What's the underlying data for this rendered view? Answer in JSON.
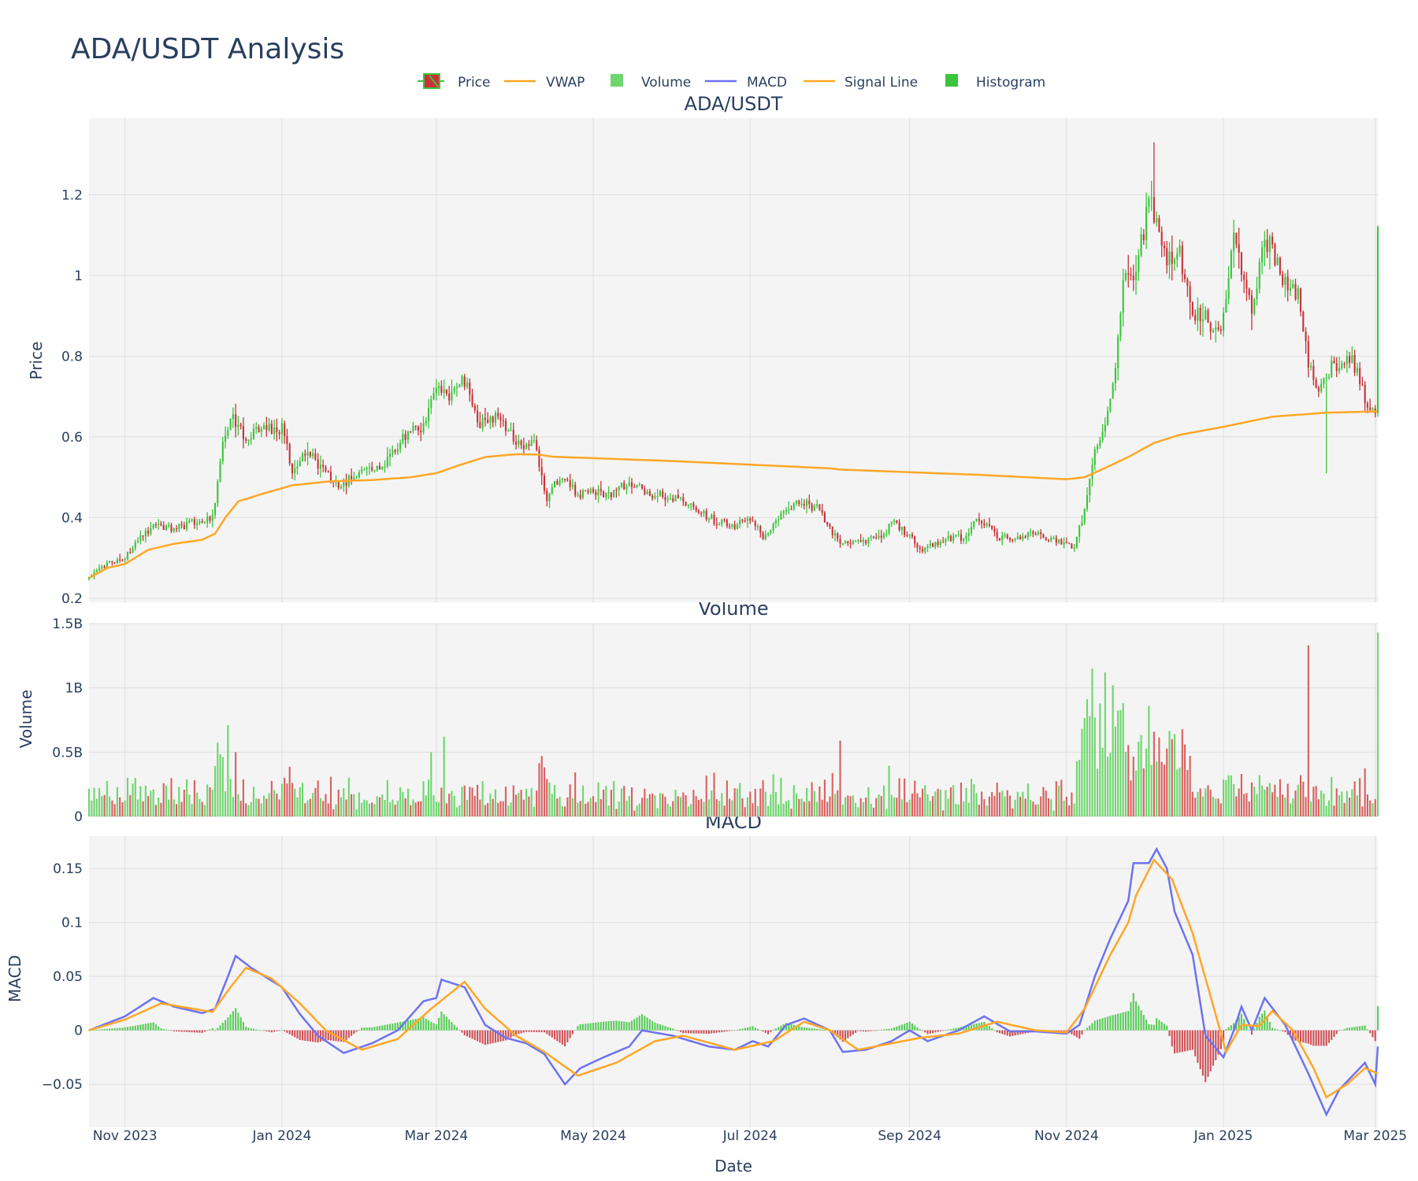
{
  "colors": {
    "up": "#3cc43c",
    "down": "#c8333a",
    "vwap": "#ffa726",
    "macd": "#6e72f0",
    "signal": "#ffa726",
    "volume_up": "#6ed66e",
    "volume_down": "#d96060",
    "plot_bg": "#f4f4f4"
  },
  "chart_data": {
    "title": "ADA/USDT Analysis",
    "legend": [
      "Price",
      "VWAP",
      "Volume",
      "MACD",
      "Signal Line",
      "Histogram"
    ],
    "xlabel": "Date",
    "x_range": [
      "2023-10-18",
      "2025-03-02"
    ],
    "x_ticks": [
      {
        "date": "2023-11-01",
        "label": "Nov 2023"
      },
      {
        "date": "2024-01-01",
        "label": "Jan 2024"
      },
      {
        "date": "2024-03-01",
        "label": "Mar 2024"
      },
      {
        "date": "2024-05-01",
        "label": "May 2024"
      },
      {
        "date": "2024-07-01",
        "label": "Jul 2024"
      },
      {
        "date": "2024-09-01",
        "label": "Sep 2024"
      },
      {
        "date": "2024-11-01",
        "label": "Nov 2024"
      },
      {
        "date": "2025-01-01",
        "label": "Jan 2025"
      },
      {
        "date": "2025-03-01",
        "label": "Mar 2025"
      }
    ],
    "price": {
      "subplot_title": "ADA/USDT",
      "type": "candlestick",
      "ylabel": "Price",
      "ylim": [
        0.19,
        1.39
      ],
      "y_ticks": [
        {
          "value": 0.2,
          "label": "0.2"
        },
        {
          "value": 0.4,
          "label": "0.4"
        },
        {
          "value": 0.6,
          "label": "0.6"
        },
        {
          "value": 0.8,
          "label": "0.8"
        },
        {
          "value": 1.0,
          "label": "1"
        },
        {
          "value": 1.2,
          "label": "1.2"
        }
      ],
      "close_keypoints": [
        [
          "2023-10-18",
          0.25
        ],
        [
          "2023-10-24",
          0.28
        ],
        [
          "2023-11-01",
          0.3
        ],
        [
          "2023-11-08",
          0.36
        ],
        [
          "2023-11-13",
          0.38
        ],
        [
          "2023-11-20",
          0.37
        ],
        [
          "2023-11-28",
          0.39
        ],
        [
          "2023-12-05",
          0.4
        ],
        [
          "2023-12-09",
          0.58
        ],
        [
          "2023-12-13",
          0.65
        ],
        [
          "2023-12-18",
          0.6
        ],
        [
          "2023-12-25",
          0.62
        ],
        [
          "2024-01-01",
          0.62
        ],
        [
          "2024-01-05",
          0.52
        ],
        [
          "2024-01-11",
          0.56
        ],
        [
          "2024-01-20",
          0.5
        ],
        [
          "2024-01-24",
          0.48
        ],
        [
          "2024-02-01",
          0.51
        ],
        [
          "2024-02-10",
          0.54
        ],
        [
          "2024-02-18",
          0.6
        ],
        [
          "2024-02-25",
          0.63
        ],
        [
          "2024-03-01",
          0.72
        ],
        [
          "2024-03-05",
          0.7
        ],
        [
          "2024-03-12",
          0.74
        ],
        [
          "2024-03-18",
          0.63
        ],
        [
          "2024-03-25",
          0.66
        ],
        [
          "2024-04-01",
          0.58
        ],
        [
          "2024-04-08",
          0.58
        ],
        [
          "2024-04-13",
          0.45
        ],
        [
          "2024-04-18",
          0.5
        ],
        [
          "2024-04-25",
          0.46
        ],
        [
          "2024-05-08",
          0.46
        ],
        [
          "2024-05-15",
          0.49
        ],
        [
          "2024-05-22",
          0.46
        ],
        [
          "2024-06-01",
          0.45
        ],
        [
          "2024-06-10",
          0.42
        ],
        [
          "2024-06-18",
          0.39
        ],
        [
          "2024-06-25",
          0.38
        ],
        [
          "2024-07-01",
          0.4
        ],
        [
          "2024-07-06",
          0.35
        ],
        [
          "2024-07-14",
          0.42
        ],
        [
          "2024-07-20",
          0.44
        ],
        [
          "2024-07-28",
          0.42
        ],
        [
          "2024-08-05",
          0.33
        ],
        [
          "2024-08-12",
          0.34
        ],
        [
          "2024-08-20",
          0.35
        ],
        [
          "2024-08-26",
          0.39
        ],
        [
          "2024-09-06",
          0.32
        ],
        [
          "2024-09-15",
          0.35
        ],
        [
          "2024-09-22",
          0.35
        ],
        [
          "2024-09-28",
          0.4
        ],
        [
          "2024-10-05",
          0.35
        ],
        [
          "2024-10-12",
          0.35
        ],
        [
          "2024-10-20",
          0.36
        ],
        [
          "2024-10-28",
          0.34
        ],
        [
          "2024-11-04",
          0.33
        ],
        [
          "2024-11-08",
          0.42
        ],
        [
          "2024-11-12",
          0.58
        ],
        [
          "2024-11-15",
          0.6
        ],
        [
          "2024-11-20",
          0.76
        ],
        [
          "2024-11-23",
          1.0
        ],
        [
          "2024-11-27",
          0.98
        ],
        [
          "2024-12-03",
          1.18
        ],
        [
          "2024-12-06",
          1.15
        ],
        [
          "2024-12-10",
          1.05
        ],
        [
          "2024-12-15",
          1.05
        ],
        [
          "2024-12-20",
          0.9
        ],
        [
          "2024-12-25",
          0.9
        ],
        [
          "2024-12-30",
          0.85
        ],
        [
          "2025-01-02",
          0.95
        ],
        [
          "2025-01-05",
          1.08
        ],
        [
          "2025-01-08",
          1.02
        ],
        [
          "2025-01-12",
          0.92
        ],
        [
          "2025-01-17",
          1.08
        ],
        [
          "2025-01-20",
          1.07
        ],
        [
          "2025-01-25",
          0.98
        ],
        [
          "2025-01-30",
          0.95
        ],
        [
          "2025-02-03",
          0.78
        ],
        [
          "2025-02-07",
          0.7
        ],
        [
          "2025-02-12",
          0.77
        ],
        [
          "2025-02-20",
          0.79
        ],
        [
          "2025-02-25",
          0.7
        ],
        [
          "2025-03-01",
          0.65
        ],
        [
          "2025-03-02",
          1.12
        ]
      ],
      "vwap_keypoints": [
        [
          "2023-10-18",
          0.25
        ],
        [
          "2023-10-25",
          0.275
        ],
        [
          "2023-11-01",
          0.285
        ],
        [
          "2023-11-10",
          0.32
        ],
        [
          "2023-11-20",
          0.335
        ],
        [
          "2023-12-01",
          0.345
        ],
        [
          "2023-12-06",
          0.36
        ],
        [
          "2023-12-10",
          0.4
        ],
        [
          "2023-12-15",
          0.44
        ],
        [
          "2023-12-25",
          0.46
        ],
        [
          "2024-01-05",
          0.48
        ],
        [
          "2024-01-20",
          0.49
        ],
        [
          "2024-02-05",
          0.493
        ],
        [
          "2024-02-20",
          0.5
        ],
        [
          "2024-03-01",
          0.51
        ],
        [
          "2024-03-10",
          0.53
        ],
        [
          "2024-03-20",
          0.55
        ],
        [
          "2024-04-01",
          0.557
        ],
        [
          "2024-04-10",
          0.556
        ],
        [
          "2024-04-15",
          0.551
        ],
        [
          "2024-06-01",
          0.54
        ],
        [
          "2024-08-01",
          0.522
        ],
        [
          "2024-08-05",
          0.519
        ],
        [
          "2024-10-01",
          0.505
        ],
        [
          "2024-11-01",
          0.495
        ],
        [
          "2024-11-08",
          0.5
        ],
        [
          "2024-11-15",
          0.52
        ],
        [
          "2024-11-25",
          0.55
        ],
        [
          "2024-12-05",
          0.585
        ],
        [
          "2024-12-15",
          0.605
        ],
        [
          "2025-01-01",
          0.625
        ],
        [
          "2025-01-20",
          0.65
        ],
        [
          "2025-02-10",
          0.66
        ],
        [
          "2025-03-02",
          0.663
        ]
      ],
      "notable_extremes": [
        {
          "date": "2024-12-05",
          "high": 1.33
        },
        {
          "date": "2025-02-10",
          "low": 0.51
        }
      ]
    },
    "volume": {
      "subplot_title": "Volume",
      "type": "bar",
      "ylabel": "Volume",
      "ylim": [
        0,
        1.5
      ],
      "unit": "B",
      "y_ticks": [
        {
          "value": 0,
          "label": "0"
        },
        {
          "value": 0.5,
          "label": "0.5B"
        },
        {
          "value": 1.0,
          "label": "1B"
        },
        {
          "value": 1.5,
          "label": "1.5B"
        }
      ],
      "spikes": [
        [
          "2023-12-11",
          0.71
        ],
        [
          "2023-12-14",
          0.5
        ],
        [
          "2024-02-28",
          0.5
        ],
        [
          "2024-03-04",
          0.62
        ],
        [
          "2024-04-11",
          0.47
        ],
        [
          "2024-08-05",
          0.59
        ],
        [
          "2024-11-11",
          1.15
        ],
        [
          "2024-11-14",
          0.88
        ],
        [
          "2024-11-16",
          1.12
        ],
        [
          "2024-11-19",
          1.02
        ],
        [
          "2024-12-03",
          0.86
        ],
        [
          "2025-02-03",
          1.33
        ],
        [
          "2025-03-02",
          1.43
        ]
      ]
    },
    "macd": {
      "subplot_title": "MACD",
      "type": "line",
      "ylabel": "MACD",
      "ylim": [
        -0.09,
        0.18
      ],
      "y_ticks": [
        {
          "value": -0.05,
          "label": "−0.05"
        },
        {
          "value": 0,
          "label": "0"
        },
        {
          "value": 0.05,
          "label": "0.05"
        },
        {
          "value": 0.1,
          "label": "0.1"
        },
        {
          "value": 0.15,
          "label": "0.15"
        }
      ],
      "macd_keypoints": [
        [
          "2023-10-18",
          0.0
        ],
        [
          "2023-11-01",
          0.013
        ],
        [
          "2023-11-12",
          0.03
        ],
        [
          "2023-11-20",
          0.022
        ],
        [
          "2023-12-01",
          0.016
        ],
        [
          "2023-12-06",
          0.02
        ],
        [
          "2023-12-11",
          0.05
        ],
        [
          "2023-12-14",
          0.069
        ],
        [
          "2023-12-20",
          0.058
        ],
        [
          "2024-01-01",
          0.04
        ],
        [
          "2024-01-08",
          0.015
        ],
        [
          "2024-01-15",
          -0.005
        ],
        [
          "2024-01-25",
          -0.021
        ],
        [
          "2024-02-05",
          -0.012
        ],
        [
          "2024-02-15",
          0.0
        ],
        [
          "2024-02-25",
          0.027
        ],
        [
          "2024-03-01",
          0.03
        ],
        [
          "2024-03-03",
          0.047
        ],
        [
          "2024-03-12",
          0.04
        ],
        [
          "2024-03-20",
          0.005
        ],
        [
          "2024-03-28",
          -0.007
        ],
        [
          "2024-04-05",
          -0.012
        ],
        [
          "2024-04-12",
          -0.022
        ],
        [
          "2024-04-20",
          -0.05
        ],
        [
          "2024-04-26",
          -0.035
        ],
        [
          "2024-05-05",
          -0.025
        ],
        [
          "2024-05-15",
          -0.015
        ],
        [
          "2024-05-20",
          0.0
        ],
        [
          "2024-06-01",
          -0.005
        ],
        [
          "2024-06-15",
          -0.015
        ],
        [
          "2024-06-25",
          -0.018
        ],
        [
          "2024-07-02",
          -0.01
        ],
        [
          "2024-07-08",
          -0.015
        ],
        [
          "2024-07-15",
          0.005
        ],
        [
          "2024-07-22",
          0.011
        ],
        [
          "2024-08-01",
          0.0
        ],
        [
          "2024-08-06",
          -0.02
        ],
        [
          "2024-08-15",
          -0.018
        ],
        [
          "2024-08-25",
          -0.01
        ],
        [
          "2024-09-01",
          0.0
        ],
        [
          "2024-09-08",
          -0.01
        ],
        [
          "2024-09-20",
          0.0
        ],
        [
          "2024-09-30",
          0.013
        ],
        [
          "2024-10-10",
          -0.001
        ],
        [
          "2024-10-20",
          -0.001
        ],
        [
          "2024-11-01",
          -0.003
        ],
        [
          "2024-11-06",
          0.005
        ],
        [
          "2024-11-12",
          0.05
        ],
        [
          "2024-11-18",
          0.085
        ],
        [
          "2024-11-25",
          0.12
        ],
        [
          "2024-11-27",
          0.155
        ],
        [
          "2024-12-03",
          0.155
        ],
        [
          "2024-12-06",
          0.168
        ],
        [
          "2024-12-10",
          0.15
        ],
        [
          "2024-12-13",
          0.11
        ],
        [
          "2024-12-20",
          0.07
        ],
        [
          "2024-12-25",
          -0.005
        ],
        [
          "2025-01-01",
          -0.025
        ],
        [
          "2025-01-05",
          0.0
        ],
        [
          "2025-01-08",
          0.022
        ],
        [
          "2025-01-12",
          0.0
        ],
        [
          "2025-01-17",
          0.03
        ],
        [
          "2025-01-25",
          0.005
        ],
        [
          "2025-02-03",
          -0.04
        ],
        [
          "2025-02-10",
          -0.078
        ],
        [
          "2025-02-15",
          -0.055
        ],
        [
          "2025-02-25",
          -0.03
        ],
        [
          "2025-03-01",
          -0.05
        ],
        [
          "2025-03-02",
          -0.015
        ]
      ],
      "signal_keypoints": [
        [
          "2023-10-18",
          0.0
        ],
        [
          "2023-11-01",
          0.01
        ],
        [
          "2023-11-15",
          0.025
        ],
        [
          "2023-12-05",
          0.017
        ],
        [
          "2023-12-12",
          0.04
        ],
        [
          "2023-12-18",
          0.058
        ],
        [
          "2023-12-28",
          0.048
        ],
        [
          "2024-01-08",
          0.025
        ],
        [
          "2024-01-18",
          0.0
        ],
        [
          "2024-02-01",
          -0.018
        ],
        [
          "2024-02-15",
          -0.008
        ],
        [
          "2024-02-28",
          0.02
        ],
        [
          "2024-03-12",
          0.045
        ],
        [
          "2024-03-20",
          0.02
        ],
        [
          "2024-04-01",
          -0.005
        ],
        [
          "2024-04-12",
          -0.02
        ],
        [
          "2024-04-25",
          -0.042
        ],
        [
          "2024-05-10",
          -0.03
        ],
        [
          "2024-05-25",
          -0.01
        ],
        [
          "2024-06-05",
          -0.005
        ],
        [
          "2024-06-25",
          -0.018
        ],
        [
          "2024-07-10",
          -0.01
        ],
        [
          "2024-07-22",
          0.008
        ],
        [
          "2024-08-01",
          0.0
        ],
        [
          "2024-08-12",
          -0.018
        ],
        [
          "2024-08-25",
          -0.012
        ],
        [
          "2024-09-05",
          -0.007
        ],
        [
          "2024-09-20",
          -0.003
        ],
        [
          "2024-10-05",
          0.008
        ],
        [
          "2024-10-20",
          0.0
        ],
        [
          "2024-11-01",
          -0.002
        ],
        [
          "2024-11-08",
          0.02
        ],
        [
          "2024-11-18",
          0.07
        ],
        [
          "2024-11-25",
          0.1
        ],
        [
          "2024-11-28",
          0.125
        ],
        [
          "2024-12-05",
          0.158
        ],
        [
          "2024-12-12",
          0.14
        ],
        [
          "2024-12-20",
          0.09
        ],
        [
          "2024-12-26",
          0.04
        ],
        [
          "2025-01-02",
          -0.02
        ],
        [
          "2025-01-08",
          0.005
        ],
        [
          "2025-01-15",
          0.004
        ],
        [
          "2025-01-20",
          0.018
        ],
        [
          "2025-01-28",
          0.0
        ],
        [
          "2025-02-05",
          -0.035
        ],
        [
          "2025-02-10",
          -0.062
        ],
        [
          "2025-02-18",
          -0.05
        ],
        [
          "2025-02-25",
          -0.035
        ],
        [
          "2025-03-02",
          -0.04
        ]
      ]
    }
  }
}
